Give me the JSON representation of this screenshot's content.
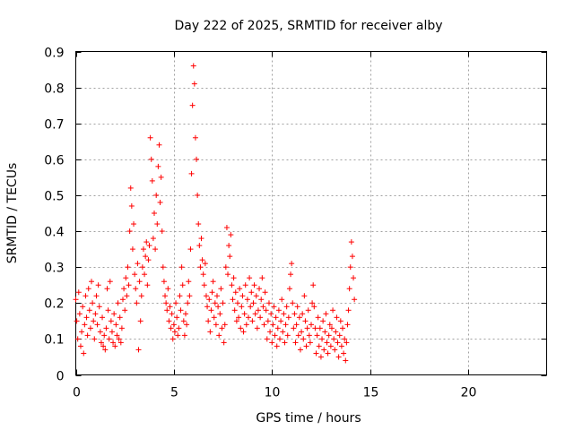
{
  "chart_data": {
    "type": "scatter",
    "title": "Day 222 of 2025, SRMTID for receiver alby",
    "xlabel": "GPS time / hours",
    "ylabel": "SRMTID / TECUs",
    "xlim": [
      0,
      24
    ],
    "ylim": [
      0,
      0.9
    ],
    "xticks": [
      0,
      5,
      10,
      15,
      20
    ],
    "yticks": [
      0,
      0.1,
      0.2,
      0.3,
      0.4,
      0.5,
      0.6,
      0.7,
      0.8,
      0.9
    ],
    "xtick_labels": [
      "0",
      "5",
      "10",
      "15",
      "20"
    ],
    "ytick_labels": [
      "0",
      "0.1",
      "0.2",
      "0.3",
      "0.4",
      "0.5",
      "0.6",
      "0.7",
      "0.8",
      "0.9"
    ],
    "grid": true,
    "marker": "+",
    "color": "#ff0000",
    "series": [
      {
        "name": "SRMTID",
        "points": [
          [
            0.0,
            0.21
          ],
          [
            0.05,
            0.15
          ],
          [
            0.1,
            0.1
          ],
          [
            0.15,
            0.23
          ],
          [
            0.2,
            0.17
          ],
          [
            0.25,
            0.08
          ],
          [
            0.3,
            0.12
          ],
          [
            0.35,
            0.19
          ],
          [
            0.4,
            0.06
          ],
          [
            0.45,
            0.14
          ],
          [
            0.5,
            0.22
          ],
          [
            0.55,
            0.16
          ],
          [
            0.6,
            0.11
          ],
          [
            0.65,
            0.24
          ],
          [
            0.7,
            0.18
          ],
          [
            0.75,
            0.13
          ],
          [
            0.8,
            0.26
          ],
          [
            0.85,
            0.2
          ],
          [
            0.9,
            0.15
          ],
          [
            0.95,
            0.1
          ],
          [
            1.0,
            0.17
          ],
          [
            1.05,
            0.22
          ],
          [
            1.1,
            0.14
          ],
          [
            1.15,
            0.25
          ],
          [
            1.2,
            0.19
          ],
          [
            1.25,
            0.12
          ],
          [
            1.3,
            0.09
          ],
          [
            1.35,
            0.16
          ],
          [
            1.4,
            0.08
          ],
          [
            1.45,
            0.11
          ],
          [
            1.5,
            0.07
          ],
          [
            1.55,
            0.13
          ],
          [
            1.6,
            0.24
          ],
          [
            1.65,
            0.18
          ],
          [
            1.7,
            0.1
          ],
          [
            1.75,
            0.26
          ],
          [
            1.8,
            0.15
          ],
          [
            1.85,
            0.12
          ],
          [
            1.9,
            0.09
          ],
          [
            1.95,
            0.17
          ],
          [
            2.0,
            0.08
          ],
          [
            2.05,
            0.14
          ],
          [
            2.1,
            0.11
          ],
          [
            2.15,
            0.2
          ],
          [
            2.2,
            0.1
          ],
          [
            2.25,
            0.16
          ],
          [
            2.3,
            0.09
          ],
          [
            2.35,
            0.13
          ],
          [
            2.4,
            0.21
          ],
          [
            2.45,
            0.24
          ],
          [
            2.5,
            0.18
          ],
          [
            2.55,
            0.27
          ],
          [
            2.6,
            0.22
          ],
          [
            2.65,
            0.3
          ],
          [
            2.7,
            0.25
          ],
          [
            2.75,
            0.4
          ],
          [
            2.8,
            0.52
          ],
          [
            2.85,
            0.47
          ],
          [
            2.9,
            0.35
          ],
          [
            2.95,
            0.42
          ],
          [
            3.0,
            0.28
          ],
          [
            3.05,
            0.24
          ],
          [
            3.1,
            0.2
          ],
          [
            3.15,
            0.31
          ],
          [
            3.2,
            0.07
          ],
          [
            3.25,
            0.26
          ],
          [
            3.3,
            0.15
          ],
          [
            3.35,
            0.22
          ],
          [
            3.4,
            0.3
          ],
          [
            3.45,
            0.35
          ],
          [
            3.5,
            0.28
          ],
          [
            3.55,
            0.33
          ],
          [
            3.6,
            0.37
          ],
          [
            3.65,
            0.25
          ],
          [
            3.7,
            0.32
          ],
          [
            3.75,
            0.36
          ],
          [
            3.8,
            0.66
          ],
          [
            3.85,
            0.6
          ],
          [
            3.9,
            0.54
          ],
          [
            3.95,
            0.38
          ],
          [
            4.0,
            0.45
          ],
          [
            4.05,
            0.35
          ],
          [
            4.1,
            0.5
          ],
          [
            4.15,
            0.42
          ],
          [
            4.2,
            0.58
          ],
          [
            4.25,
            0.64
          ],
          [
            4.3,
            0.48
          ],
          [
            4.35,
            0.55
          ],
          [
            4.4,
            0.4
          ],
          [
            4.45,
            0.3
          ],
          [
            4.5,
            0.26
          ],
          [
            4.55,
            0.22
          ],
          [
            4.6,
            0.2
          ],
          [
            4.65,
            0.18
          ],
          [
            4.7,
            0.24
          ],
          [
            4.75,
            0.15
          ],
          [
            4.8,
            0.19
          ],
          [
            4.85,
            0.13
          ],
          [
            4.9,
            0.17
          ],
          [
            4.95,
            0.1
          ],
          [
            5.0,
            0.14
          ],
          [
            5.05,
            0.12
          ],
          [
            5.1,
            0.2
          ],
          [
            5.15,
            0.16
          ],
          [
            5.2,
            0.11
          ],
          [
            5.25,
            0.13
          ],
          [
            5.3,
            0.22
          ],
          [
            5.35,
            0.18
          ],
          [
            5.4,
            0.3
          ],
          [
            5.45,
            0.25
          ],
          [
            5.5,
            0.15
          ],
          [
            5.55,
            0.11
          ],
          [
            5.6,
            0.17
          ],
          [
            5.65,
            0.14
          ],
          [
            5.7,
            0.2
          ],
          [
            5.75,
            0.26
          ],
          [
            5.8,
            0.22
          ],
          [
            5.85,
            0.35
          ],
          [
            5.9,
            0.56
          ],
          [
            5.95,
            0.75
          ],
          [
            6.0,
            0.86
          ],
          [
            6.05,
            0.81
          ],
          [
            6.1,
            0.66
          ],
          [
            6.15,
            0.6
          ],
          [
            6.2,
            0.5
          ],
          [
            6.25,
            0.42
          ],
          [
            6.3,
            0.36
          ],
          [
            6.35,
            0.3
          ],
          [
            6.4,
            0.38
          ],
          [
            6.45,
            0.32
          ],
          [
            6.5,
            0.28
          ],
          [
            6.55,
            0.25
          ],
          [
            6.6,
            0.31
          ],
          [
            6.65,
            0.22
          ],
          [
            6.7,
            0.19
          ],
          [
            6.75,
            0.15
          ],
          [
            6.8,
            0.21
          ],
          [
            6.85,
            0.12
          ],
          [
            6.9,
            0.18
          ],
          [
            6.95,
            0.23
          ],
          [
            7.0,
            0.26
          ],
          [
            7.05,
            0.16
          ],
          [
            7.1,
            0.2
          ],
          [
            7.15,
            0.14
          ],
          [
            7.2,
            0.22
          ],
          [
            7.25,
            0.19
          ],
          [
            7.3,
            0.11
          ],
          [
            7.35,
            0.17
          ],
          [
            7.4,
            0.24
          ],
          [
            7.45,
            0.13
          ],
          [
            7.5,
            0.2
          ],
          [
            7.55,
            0.09
          ],
          [
            7.6,
            0.14
          ],
          [
            7.65,
            0.3
          ],
          [
            7.7,
            0.41
          ],
          [
            7.75,
            0.28
          ],
          [
            7.8,
            0.36
          ],
          [
            7.85,
            0.33
          ],
          [
            7.9,
            0.39
          ],
          [
            7.95,
            0.25
          ],
          [
            8.0,
            0.21
          ],
          [
            8.05,
            0.27
          ],
          [
            8.1,
            0.18
          ],
          [
            8.15,
            0.23
          ],
          [
            8.2,
            0.15
          ],
          [
            8.25,
            0.2
          ],
          [
            8.3,
            0.16
          ],
          [
            8.35,
            0.24
          ],
          [
            8.4,
            0.13
          ],
          [
            8.45,
            0.19
          ],
          [
            8.5,
            0.22
          ],
          [
            8.55,
            0.12
          ],
          [
            8.6,
            0.17
          ],
          [
            8.65,
            0.25
          ],
          [
            8.7,
            0.14
          ],
          [
            8.75,
            0.21
          ],
          [
            8.8,
            0.16
          ],
          [
            8.85,
            0.27
          ],
          [
            8.9,
            0.19
          ],
          [
            8.95,
            0.23
          ],
          [
            9.0,
            0.15
          ],
          [
            9.05,
            0.2
          ],
          [
            9.1,
            0.25
          ],
          [
            9.15,
            0.17
          ],
          [
            9.2,
            0.22
          ],
          [
            9.25,
            0.13
          ],
          [
            9.3,
            0.18
          ],
          [
            9.35,
            0.24
          ],
          [
            9.4,
            0.16
          ],
          [
            9.45,
            0.21
          ],
          [
            9.5,
            0.27
          ],
          [
            9.55,
            0.19
          ],
          [
            9.6,
            0.14
          ],
          [
            9.65,
            0.23
          ],
          [
            9.7,
            0.18
          ],
          [
            9.75,
            0.1
          ],
          [
            9.8,
            0.15
          ],
          [
            9.85,
            0.2
          ],
          [
            9.9,
            0.12
          ],
          [
            9.95,
            0.17
          ],
          [
            10.0,
            0.09
          ],
          [
            10.05,
            0.14
          ],
          [
            10.1,
            0.19
          ],
          [
            10.15,
            0.11
          ],
          [
            10.2,
            0.16
          ],
          [
            10.25,
            0.08
          ],
          [
            10.3,
            0.13
          ],
          [
            10.35,
            0.18
          ],
          [
            10.4,
            0.1
          ],
          [
            10.45,
            0.15
          ],
          [
            10.5,
            0.21
          ],
          [
            10.55,
            0.12
          ],
          [
            10.6,
            0.17
          ],
          [
            10.65,
            0.09
          ],
          [
            10.7,
            0.14
          ],
          [
            10.75,
            0.19
          ],
          [
            10.8,
            0.11
          ],
          [
            10.85,
            0.16
          ],
          [
            10.9,
            0.24
          ],
          [
            10.95,
            0.28
          ],
          [
            11.0,
            0.31
          ],
          [
            11.05,
            0.2
          ],
          [
            11.1,
            0.13
          ],
          [
            11.15,
            0.17
          ],
          [
            11.2,
            0.09
          ],
          [
            11.25,
            0.14
          ],
          [
            11.3,
            0.19
          ],
          [
            11.35,
            0.11
          ],
          [
            11.4,
            0.16
          ],
          [
            11.45,
            0.07
          ],
          [
            11.5,
            0.12
          ],
          [
            11.55,
            0.17
          ],
          [
            11.6,
            0.1
          ],
          [
            11.65,
            0.22
          ],
          [
            11.7,
            0.15
          ],
          [
            11.75,
            0.08
          ],
          [
            11.8,
            0.13
          ],
          [
            11.85,
            0.18
          ],
          [
            11.9,
            0.11
          ],
          [
            11.95,
            0.09
          ],
          [
            12.0,
            0.14
          ],
          [
            12.05,
            0.2
          ],
          [
            12.1,
            0.25
          ],
          [
            12.15,
            0.19
          ],
          [
            12.2,
            0.13
          ],
          [
            12.25,
            0.06
          ],
          [
            12.3,
            0.11
          ],
          [
            12.35,
            0.16
          ],
          [
            12.4,
            0.08
          ],
          [
            12.45,
            0.13
          ],
          [
            12.5,
            0.05
          ],
          [
            12.55,
            0.1
          ],
          [
            12.6,
            0.15
          ],
          [
            12.65,
            0.07
          ],
          [
            12.7,
            0.12
          ],
          [
            12.75,
            0.17
          ],
          [
            12.8,
            0.09
          ],
          [
            12.85,
            0.06
          ],
          [
            12.9,
            0.11
          ],
          [
            12.95,
            0.14
          ],
          [
            13.0,
            0.08
          ],
          [
            13.05,
            0.13
          ],
          [
            13.1,
            0.18
          ],
          [
            13.15,
            0.1
          ],
          [
            13.2,
            0.07
          ],
          [
            13.25,
            0.12
          ],
          [
            13.3,
            0.16
          ],
          [
            13.35,
            0.09
          ],
          [
            13.4,
            0.05
          ],
          [
            13.45,
            0.11
          ],
          [
            13.5,
            0.15
          ],
          [
            13.55,
            0.08
          ],
          [
            13.6,
            0.13
          ],
          [
            13.65,
            0.06
          ],
          [
            13.7,
            0.1
          ],
          [
            13.75,
            0.04
          ],
          [
            13.8,
            0.09
          ],
          [
            13.85,
            0.14
          ],
          [
            13.9,
            0.18
          ],
          [
            13.95,
            0.24
          ],
          [
            14.0,
            0.3
          ],
          [
            14.05,
            0.37
          ],
          [
            14.1,
            0.33
          ],
          [
            14.15,
            0.27
          ],
          [
            14.2,
            0.21
          ]
        ]
      }
    ]
  }
}
